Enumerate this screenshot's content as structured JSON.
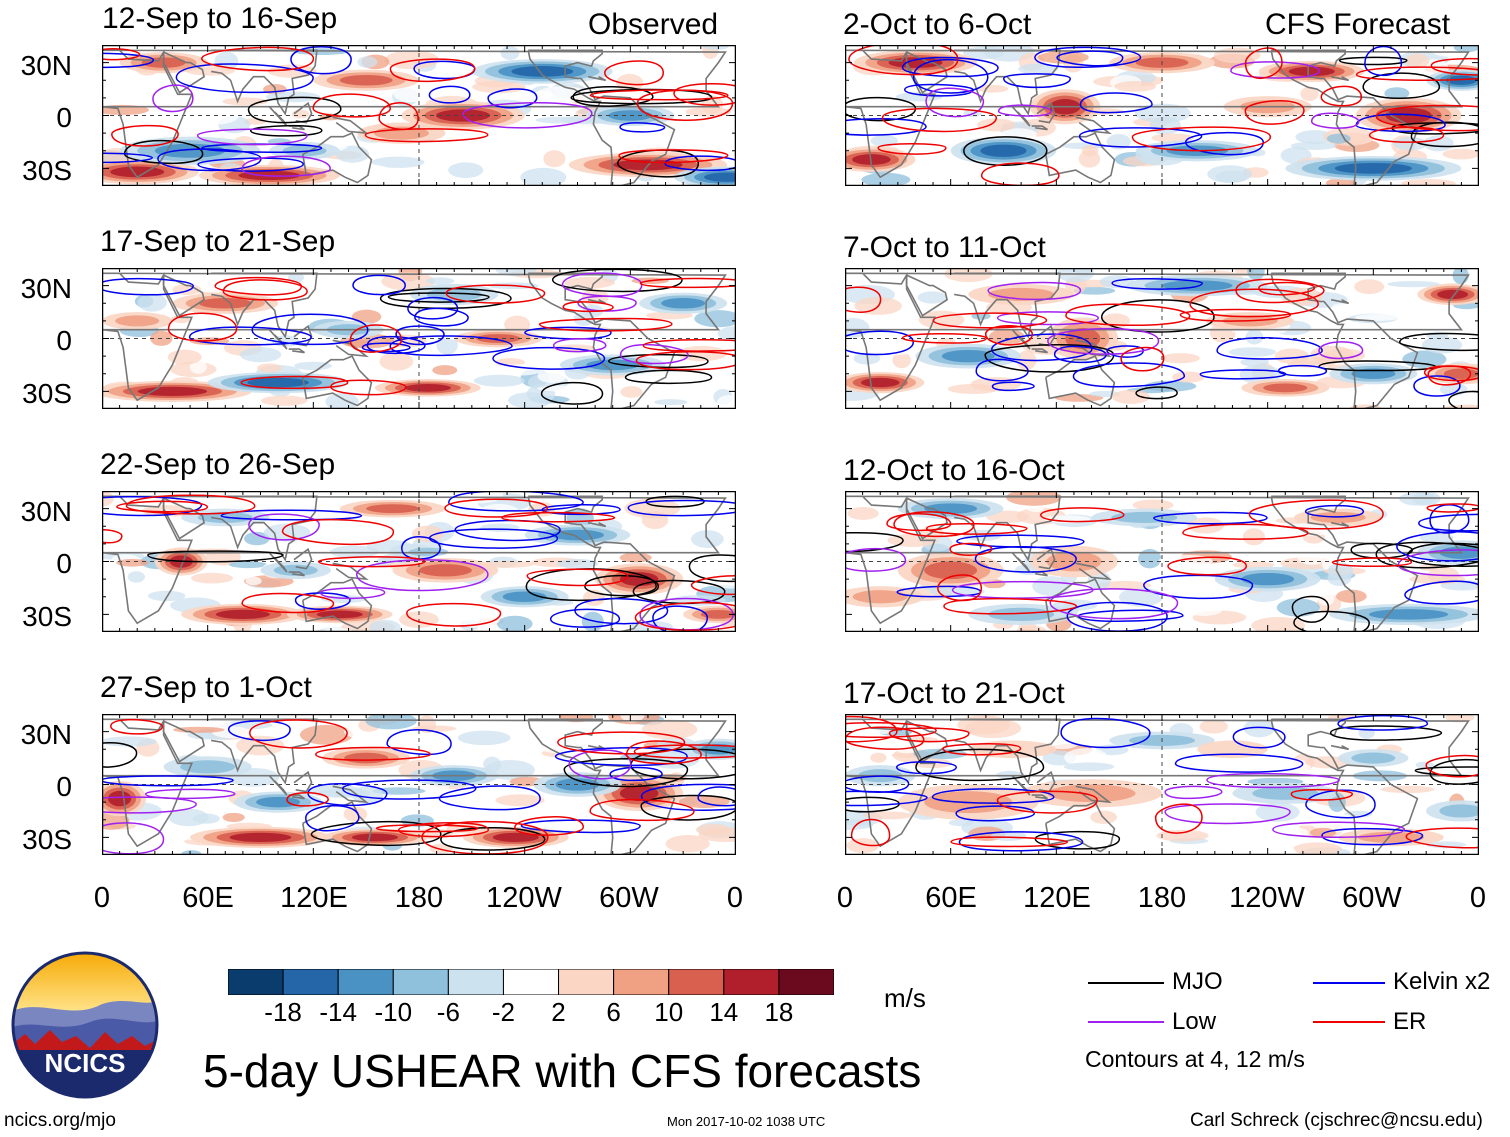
{
  "figure": {
    "title": "5-day USHEAR with CFS forecasts",
    "observed_label": "Observed",
    "forecast_label": "CFS Forecast",
    "units_label": "m/s",
    "contour_note": "Contours at 4, 12 m/s",
    "source_url": "ncics.org/mjo",
    "timestamp": "Mon 2017-10-02 1038 UTC",
    "author": "Carl Schreck (cjschrec@ncsu.edu)",
    "logo_text": "NCICS"
  },
  "panels": [
    {
      "title": "12-Sep to 16-Sep",
      "type": "observed"
    },
    {
      "title": "17-Sep to 21-Sep",
      "type": "observed"
    },
    {
      "title": "22-Sep to 26-Sep",
      "type": "observed"
    },
    {
      "title": "27-Sep to 1-Oct",
      "type": "observed"
    },
    {
      "title": "2-Oct to 6-Oct",
      "type": "forecast"
    },
    {
      "title": "7-Oct to 11-Oct",
      "type": "forecast"
    },
    {
      "title": "12-Oct to 16-Oct",
      "type": "forecast"
    },
    {
      "title": "17-Oct to 21-Oct",
      "type": "forecast"
    }
  ],
  "axes": {
    "y_ticks": [
      "30N",
      "0",
      "30S"
    ],
    "x_ticks": [
      "0",
      "60E",
      "120E",
      "180",
      "120W",
      "60W",
      "0"
    ],
    "y_values": [
      30,
      0,
      -30
    ],
    "x_values": [
      0,
      60,
      120,
      180,
      240,
      300,
      360
    ]
  },
  "colorbar": {
    "labels": [
      "-18",
      "-14",
      "-10",
      "-6",
      "-2",
      "2",
      "6",
      "10",
      "14",
      "18"
    ],
    "colors": [
      "#0b3c6e",
      "#2466a8",
      "#4a92c4",
      "#8fc0dc",
      "#cde2ef",
      "#ffffff",
      "#fbd6c4",
      "#f0a184",
      "#d9604f",
      "#b21f2c",
      "#6b0a1f"
    ]
  },
  "legend": {
    "items": [
      {
        "label": "MJO",
        "color": "#000000"
      },
      {
        "label": "Kelvin x2",
        "color": "#0000ee"
      },
      {
        "label": "Low",
        "color": "#a020f0"
      },
      {
        "label": "ER",
        "color": "#ee0000"
      }
    ]
  },
  "chart_data": {
    "type": "heatmap",
    "title": "5-day USHEAR with CFS forecasts",
    "variable": "USHEAR",
    "units": "m/s",
    "xlim": [
      0,
      360
    ],
    "ylim": [
      -40,
      40
    ],
    "x_ticks": [
      0,
      60,
      120,
      180,
      240,
      300,
      360
    ],
    "y_ticks": [
      30,
      0,
      -30
    ],
    "color_levels": [
      -18,
      -14,
      -10,
      -6,
      -2,
      2,
      6,
      10,
      14,
      18
    ],
    "contour_levels": [
      4,
      12
    ],
    "contour_series": [
      "MJO",
      "Kelvin x2",
      "Low",
      "ER"
    ],
    "panels": [
      "12-Sep to 16-Sep",
      "17-Sep to 21-Sep",
      "22-Sep to 26-Sep",
      "27-Sep to 1-Oct",
      "2-Oct to 6-Oct",
      "7-Oct to 11-Oct",
      "12-Oct to 16-Oct",
      "17-Oct to 21-Oct"
    ]
  }
}
